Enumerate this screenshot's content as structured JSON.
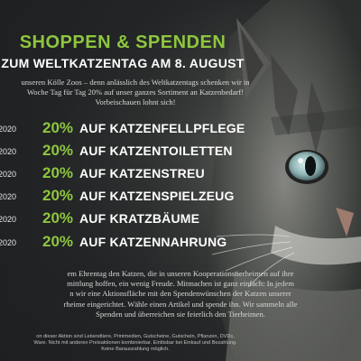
{
  "headline": "SHOPPEN & SPENDEN",
  "subheadline": "ZUM WELTKATZENTAG AM 8. AUGUST",
  "intro_lines": [
    "unseren Kölle Zoos – denn anlässlich des Weltkatzentags schenken wir in",
    "Woche Tag für Tag 20% auf unser ganzes Sortiment an Katzenbedarf!",
    "Vorbeischauen lohnt sich!"
  ],
  "offers": [
    {
      "date": "2020",
      "percent": "20%",
      "label": "AUF KATZENFELLPFLEGE"
    },
    {
      "date": "2020",
      "percent": "20%",
      "label": "AUF KATZENTOILETTEN"
    },
    {
      "date": "2020",
      "percent": "20%",
      "label": "AUF KATZENSTREU"
    },
    {
      "date": "2020",
      "percent": "20%",
      "label": "AUF KATZENSPIELZEUG"
    },
    {
      "date": "2020",
      "percent": "20%",
      "label": "AUF KRATZBÄUME"
    },
    {
      "date": "2020",
      "percent": "20%",
      "label": "AUF KATZENNAHRUNG"
    }
  ],
  "outro_lines": [
    "em Ehrentag den Katzen, die in unseren Kooperationstierheimen auf ihre",
    "mittlung hoffen, ein wenig Freude. Mitmachen ist ganz einfach: In jedem",
    "n wir eine Aktionsfläche mit den Spendenwünschen der Katzen unserer",
    "rheime eingerichtet. Wähle einen Artikel und spende ihn. Wir sammeln alle",
    "Spenden und überreichen sie feierlich den Tierheimen."
  ],
  "fine_lines": [
    "on dieser Aktion sind Lebendtiere, Printmedien, Gutscheine, Gutschein, Pflanzen, DVDs,",
    "Ware. Nicht mit anderen Preisaktionen kombinierbar. Einlösbar bei Einkauf und Bezahlung.",
    "Keine Barauszahlung möglich."
  ],
  "colors": {
    "accent_green": "#8ec63f",
    "background": "#2a2d30",
    "text_white": "#ffffff"
  }
}
